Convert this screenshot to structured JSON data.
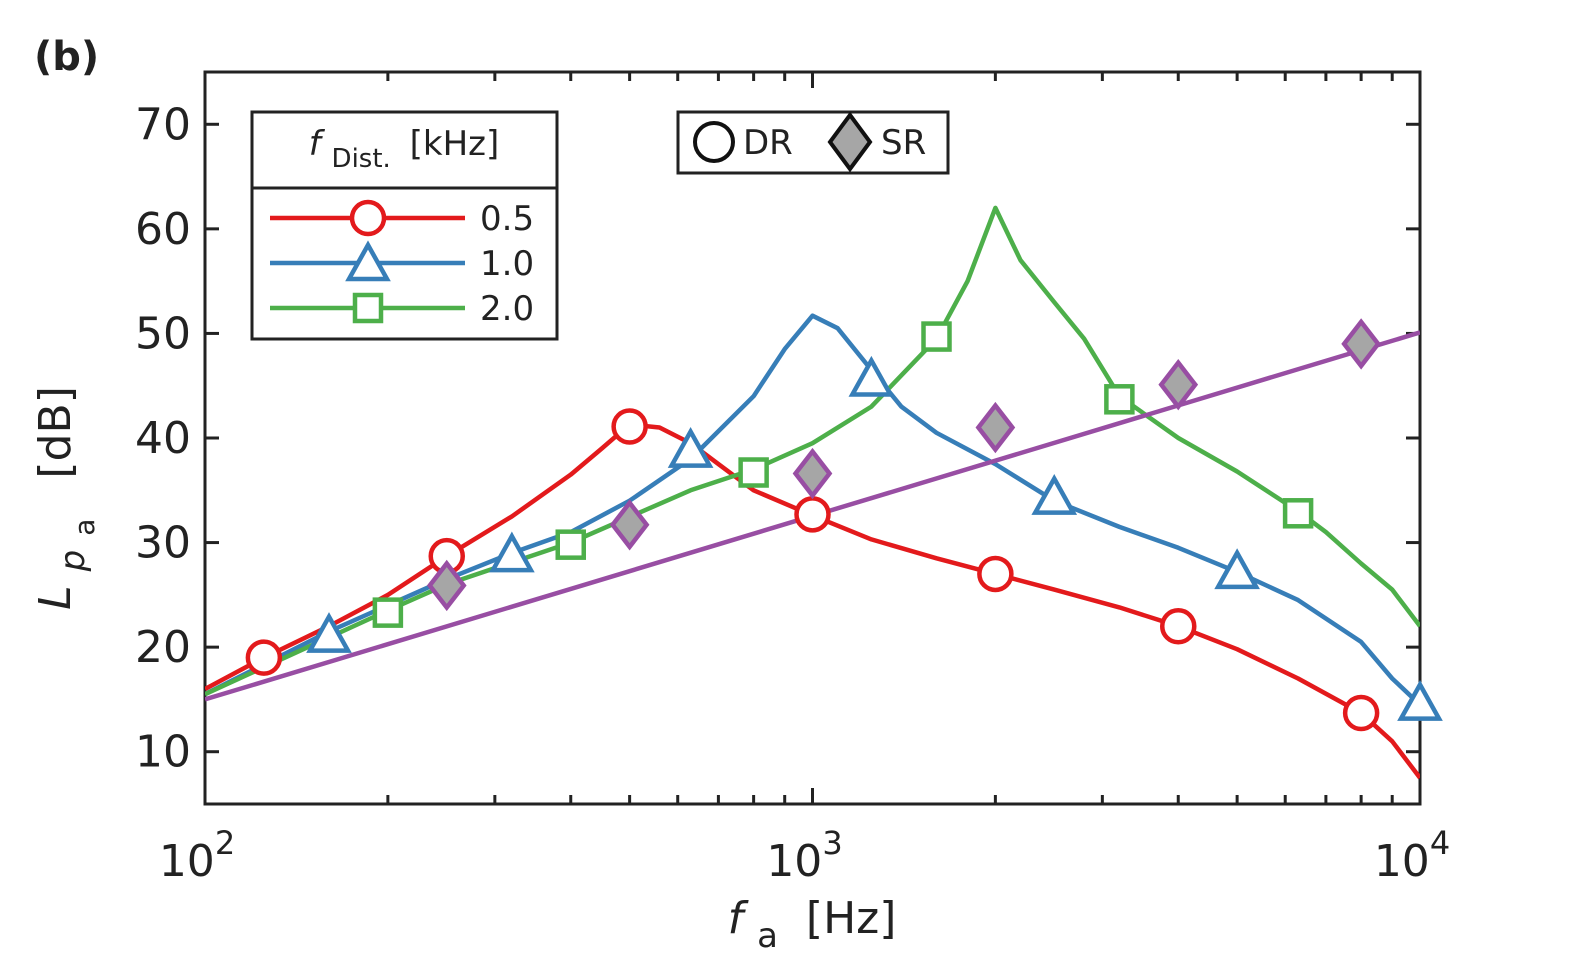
{
  "panel_label": "(b)",
  "chart_data": {
    "type": "line",
    "xscale": "log",
    "xlim": [
      100,
      10000
    ],
    "ylim": [
      5,
      75
    ],
    "xticks": [
      100,
      1000,
      10000
    ],
    "xtick_labels": [
      {
        "base": "10",
        "exp": "2"
      },
      {
        "base": "10",
        "exp": "3"
      },
      {
        "base": "10",
        "exp": "4"
      }
    ],
    "yticks": [
      10,
      20,
      30,
      40,
      50,
      60,
      70
    ],
    "ytick_labels": [
      "10",
      "20",
      "30",
      "40",
      "50",
      "60",
      "70"
    ],
    "xlabel": {
      "symbol": "f",
      "sub": "a",
      "unit": "[Hz]"
    },
    "ylabel": {
      "symbol": "L",
      "sub": "p",
      "subsub": "a",
      "unit": "[dB]"
    },
    "legend": {
      "title": {
        "symbol": "f",
        "sub": "Dist.",
        "unit": "[kHz]"
      },
      "placement": "top-left",
      "entries": [
        "0.5",
        "1.0",
        "2.0"
      ],
      "marker_legend": [
        {
          "marker": "circle",
          "label": "DR"
        },
        {
          "marker": "diamond",
          "label": "SR"
        }
      ]
    },
    "series": [
      {
        "name": "0.5",
        "color": "#e31a1c",
        "marker": "circle",
        "line": [
          [
            100,
            16
          ],
          [
            125,
            19
          ],
          [
            160,
            22
          ],
          [
            200,
            25
          ],
          [
            250,
            28.7
          ],
          [
            320,
            32.5
          ],
          [
            400,
            36.5
          ],
          [
            450,
            39
          ],
          [
            500,
            41.3
          ],
          [
            560,
            41
          ],
          [
            630,
            39.5
          ],
          [
            700,
            37.5
          ],
          [
            800,
            35
          ],
          [
            1000,
            32.6
          ],
          [
            1250,
            30.3
          ],
          [
            1600,
            28.5
          ],
          [
            2000,
            27
          ],
          [
            2500,
            25.5
          ],
          [
            3200,
            23.8
          ],
          [
            4000,
            22
          ],
          [
            5000,
            19.8
          ],
          [
            6300,
            17
          ],
          [
            8000,
            13.7
          ],
          [
            9000,
            11
          ],
          [
            10000,
            7.5
          ]
        ],
        "markers": [
          [
            125,
            19
          ],
          [
            250,
            28.7
          ],
          [
            500,
            41.1
          ],
          [
            1000,
            32.7
          ],
          [
            2000,
            27
          ],
          [
            4000,
            22
          ],
          [
            8000,
            13.7
          ]
        ]
      },
      {
        "name": "1.0",
        "color": "#377eb8",
        "marker": "triangle",
        "line": [
          [
            100,
            15.5
          ],
          [
            160,
            21.5
          ],
          [
            250,
            26.5
          ],
          [
            320,
            29
          ],
          [
            400,
            31
          ],
          [
            500,
            34
          ],
          [
            630,
            38
          ],
          [
            800,
            44
          ],
          [
            900,
            48.5
          ],
          [
            1000,
            51.7
          ],
          [
            1100,
            50.5
          ],
          [
            1250,
            46.5
          ],
          [
            1400,
            43
          ],
          [
            1600,
            40.5
          ],
          [
            2000,
            37.5
          ],
          [
            2500,
            34
          ],
          [
            3200,
            31.5
          ],
          [
            4000,
            29.5
          ],
          [
            5000,
            27.2
          ],
          [
            6300,
            24.5
          ],
          [
            8000,
            20.5
          ],
          [
            9000,
            17
          ],
          [
            10000,
            14.5
          ]
        ],
        "markers": [
          [
            160,
            21
          ],
          [
            320,
            28.7
          ],
          [
            630,
            38.7
          ],
          [
            1250,
            45.5
          ],
          [
            2500,
            34.2
          ],
          [
            5000,
            27.1
          ],
          [
            10000,
            14.5
          ]
        ]
      },
      {
        "name": "2.0",
        "color": "#4daf4a",
        "marker": "square",
        "line": [
          [
            100,
            15.5
          ],
          [
            200,
            23.5
          ],
          [
            250,
            26
          ],
          [
            400,
            30
          ],
          [
            630,
            35
          ],
          [
            800,
            37
          ],
          [
            1000,
            39.5
          ],
          [
            1250,
            43
          ],
          [
            1600,
            49.5
          ],
          [
            1800,
            55
          ],
          [
            2000,
            62
          ],
          [
            2200,
            57
          ],
          [
            2500,
            53
          ],
          [
            2800,
            49.5
          ],
          [
            3200,
            44
          ],
          [
            4000,
            40
          ],
          [
            5000,
            36.8
          ],
          [
            6300,
            33
          ],
          [
            7000,
            31
          ],
          [
            8000,
            28
          ],
          [
            9000,
            25.5
          ],
          [
            10000,
            22
          ]
        ],
        "markers": [
          [
            200,
            23.3
          ],
          [
            400,
            29.8
          ],
          [
            800,
            36.7
          ],
          [
            1600,
            49.7
          ],
          [
            3200,
            43.7
          ],
          [
            6300,
            32.8
          ]
        ]
      },
      {
        "name": "SR",
        "color": "#984ea3",
        "marker": "diamond",
        "marker_fill": "#a6a6a6",
        "line": [
          [
            100,
            15
          ],
          [
            10000,
            50.1
          ]
        ],
        "markers": [
          [
            250,
            25.9
          ],
          [
            500,
            31.7
          ],
          [
            1000,
            36.6
          ],
          [
            2000,
            41
          ],
          [
            4000,
            45.1
          ],
          [
            8000,
            49
          ]
        ]
      }
    ]
  }
}
